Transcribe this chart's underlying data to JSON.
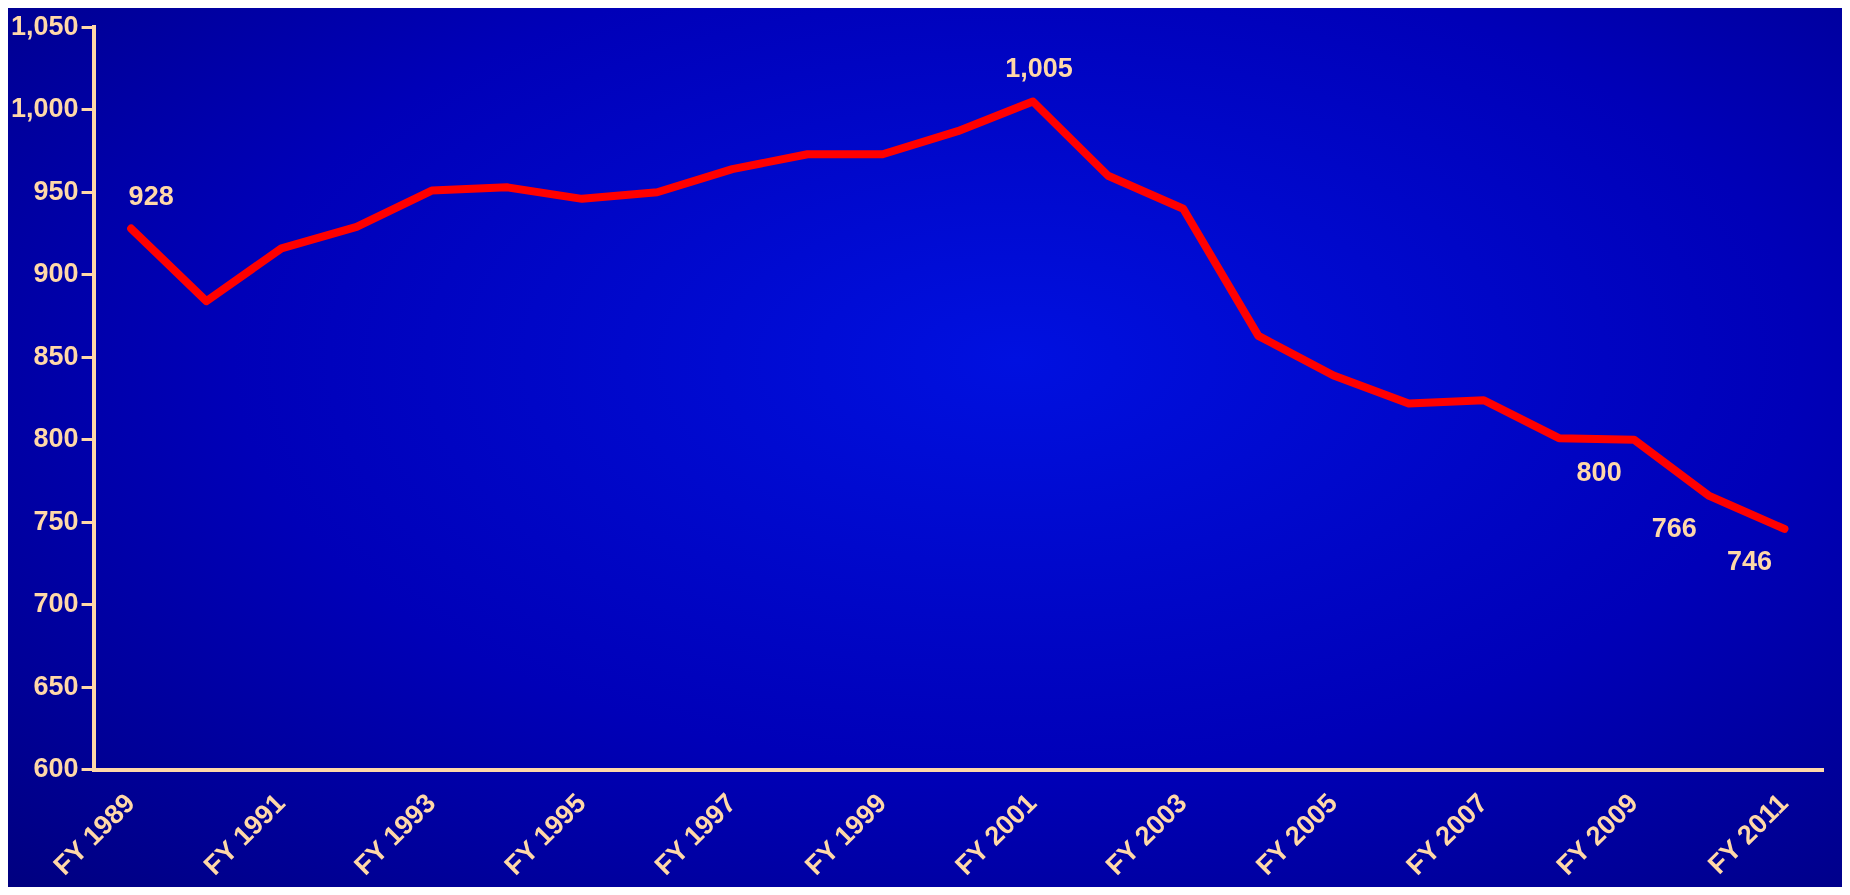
{
  "chart_data": {
    "type": "line",
    "categories": [
      "FY 1989",
      null,
      "FY 1991",
      null,
      "FY 1993",
      null,
      "FY 1995",
      null,
      "FY 1997",
      null,
      "FY 1999",
      null,
      "FY 2001",
      null,
      "FY 2003",
      null,
      "FY 2005",
      null,
      "FY 2007",
      null,
      "FY 2009",
      null,
      "FY 2011"
    ],
    "series": [
      {
        "color": "#ff0000",
        "values": [
          928,
          884,
          916,
          929,
          951,
          953,
          946,
          950,
          964,
          973,
          973,
          987,
          1005,
          960,
          940,
          863,
          839,
          822,
          824,
          801,
          800,
          766,
          746
        ],
        "value_labels": [
          "928",
          null,
          null,
          null,
          null,
          null,
          null,
          null,
          null,
          null,
          null,
          null,
          "1,005",
          null,
          null,
          null,
          null,
          null,
          null,
          null,
          "800",
          "766",
          "746"
        ]
      }
    ],
    "ylim": [
      600,
      1050
    ],
    "yticks": [
      600,
      650,
      700,
      750,
      800,
      850,
      900,
      950,
      {
        "value": 1000,
        "label": "1,000"
      },
      {
        "value": 1050,
        "label": "1,050"
      }
    ],
    "grid": false,
    "legend": false,
    "marker": "none",
    "line_style": "solid"
  }
}
